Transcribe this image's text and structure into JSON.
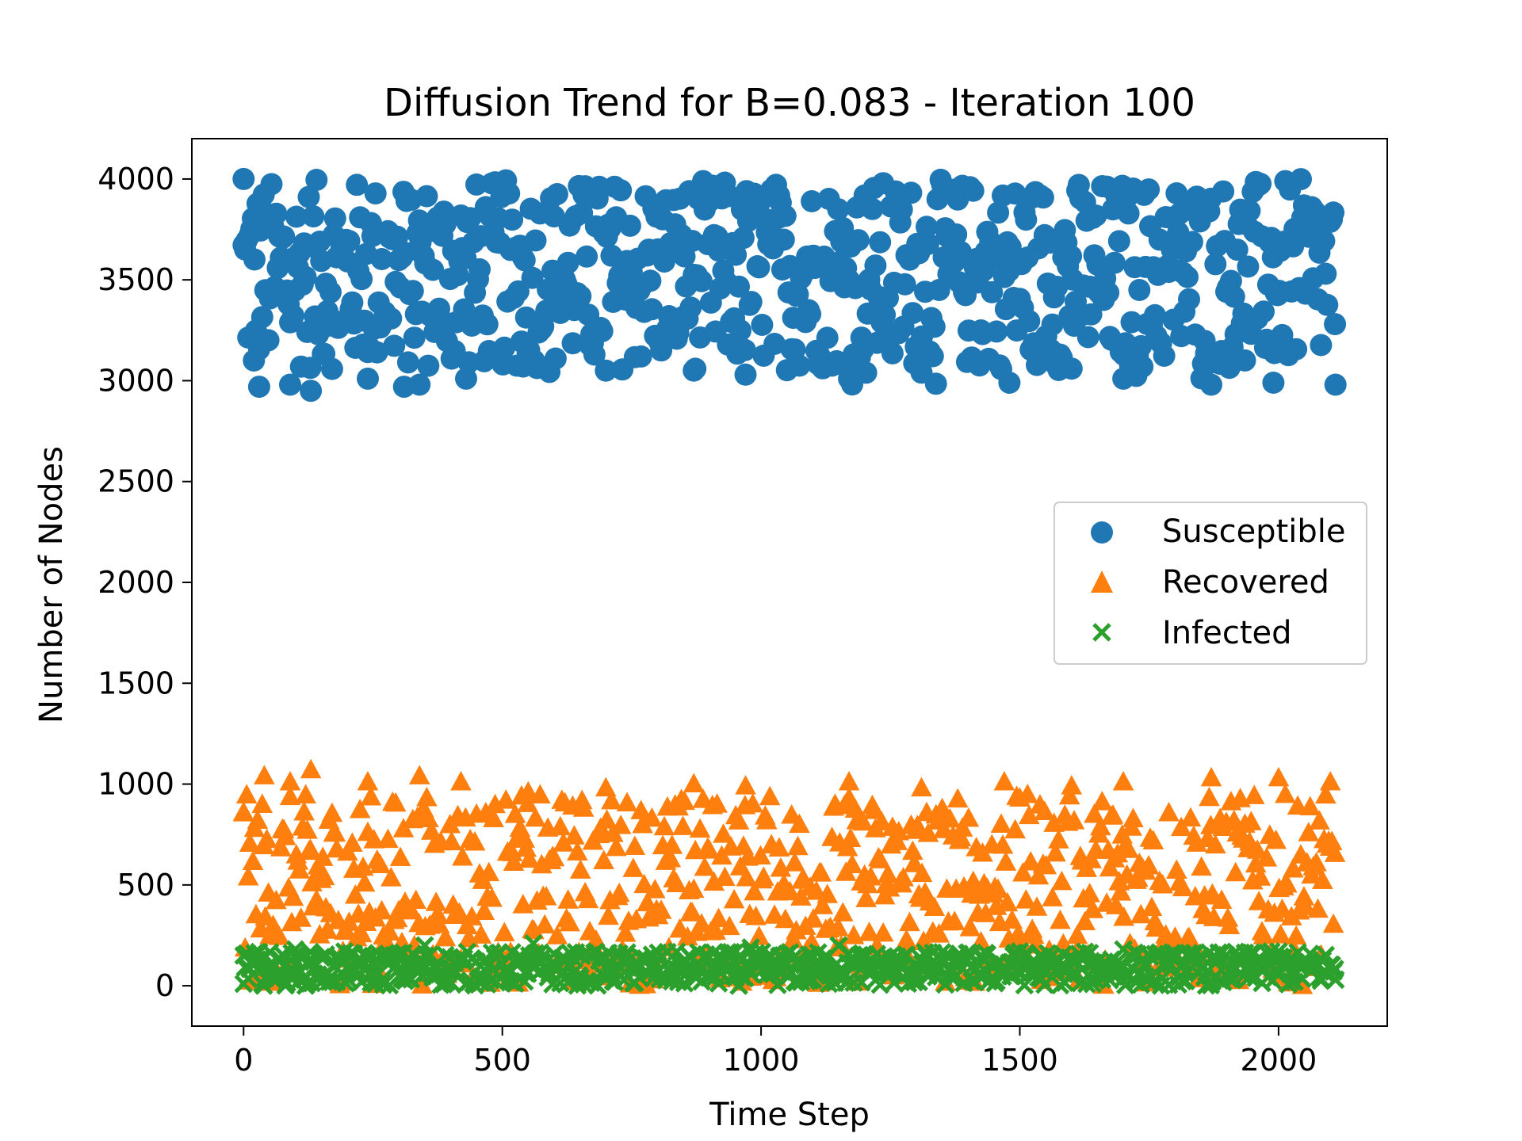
{
  "chart_data": {
    "type": "scatter",
    "title": "Diffusion Trend for B=0.083 - Iteration 100",
    "xlabel": "Time Step",
    "ylabel": "Number of Nodes",
    "xlim": [
      -100,
      2210
    ],
    "ylim": [
      -200,
      4200
    ],
    "x_ticks": [
      0,
      500,
      1000,
      1500,
      2000
    ],
    "y_ticks": [
      0,
      500,
      1000,
      1500,
      2000,
      2500,
      3000,
      3500,
      4000
    ],
    "grid": false,
    "legend_position": "center-right",
    "x_max": 2110,
    "series": [
      {
        "name": "Susceptible",
        "marker": "circle",
        "color": "#1f77b4",
        "y_range_approx": [
          2950,
          4000
        ],
        "values_sampled": [
          {
            "x": 0,
            "y": 4000
          },
          {
            "x": 20,
            "y": 3100
          },
          {
            "x": 30,
            "y": 2970
          },
          {
            "x": 90,
            "y": 2980
          },
          {
            "x": 130,
            "y": 2950
          },
          {
            "x": 240,
            "y": 3010
          },
          {
            "x": 310,
            "y": 2970
          },
          {
            "x": 340,
            "y": 2980
          },
          {
            "x": 430,
            "y": 3010
          },
          {
            "x": 540,
            "y": 3070
          },
          {
            "x": 700,
            "y": 3050
          },
          {
            "x": 870,
            "y": 3050
          },
          {
            "x": 970,
            "y": 3030
          },
          {
            "x": 1170,
            "y": 3010
          },
          {
            "x": 1310,
            "y": 3040
          },
          {
            "x": 1480,
            "y": 2990
          },
          {
            "x": 1600,
            "y": 3060
          },
          {
            "x": 1700,
            "y": 3010
          },
          {
            "x": 1870,
            "y": 2980
          },
          {
            "x": 1990,
            "y": 2990
          },
          {
            "x": 2110,
            "y": 2980
          }
        ]
      },
      {
        "name": "Recovered",
        "marker": "triangle",
        "color": "#ff7f0e",
        "y_range_approx": [
          0,
          1070
        ],
        "values_sampled": [
          {
            "x": 0,
            "y": 860
          },
          {
            "x": 40,
            "y": 1040
          },
          {
            "x": 90,
            "y": 1010
          },
          {
            "x": 130,
            "y": 1070
          },
          {
            "x": 240,
            "y": 1010
          },
          {
            "x": 340,
            "y": 1040
          },
          {
            "x": 420,
            "y": 1010
          },
          {
            "x": 550,
            "y": 960
          },
          {
            "x": 700,
            "y": 980
          },
          {
            "x": 870,
            "y": 1000
          },
          {
            "x": 970,
            "y": 990
          },
          {
            "x": 1170,
            "y": 1010
          },
          {
            "x": 1310,
            "y": 980
          },
          {
            "x": 1470,
            "y": 1010
          },
          {
            "x": 1600,
            "y": 990
          },
          {
            "x": 1700,
            "y": 1010
          },
          {
            "x": 1870,
            "y": 1030
          },
          {
            "x": 2000,
            "y": 1030
          },
          {
            "x": 2100,
            "y": 1010
          }
        ]
      },
      {
        "name": "Infected",
        "marker": "x",
        "color": "#2ca02c",
        "y_range_approx": [
          0,
          220
        ],
        "values_sampled": [
          {
            "x": 0,
            "y": 150
          },
          {
            "x": 100,
            "y": 180
          },
          {
            "x": 350,
            "y": 200
          },
          {
            "x": 560,
            "y": 210
          },
          {
            "x": 980,
            "y": 190
          },
          {
            "x": 1150,
            "y": 200
          },
          {
            "x": 1500,
            "y": 170
          },
          {
            "x": 1700,
            "y": 180
          },
          {
            "x": 2000,
            "y": 170
          },
          {
            "x": 2110,
            "y": 30
          }
        ]
      }
    ]
  }
}
